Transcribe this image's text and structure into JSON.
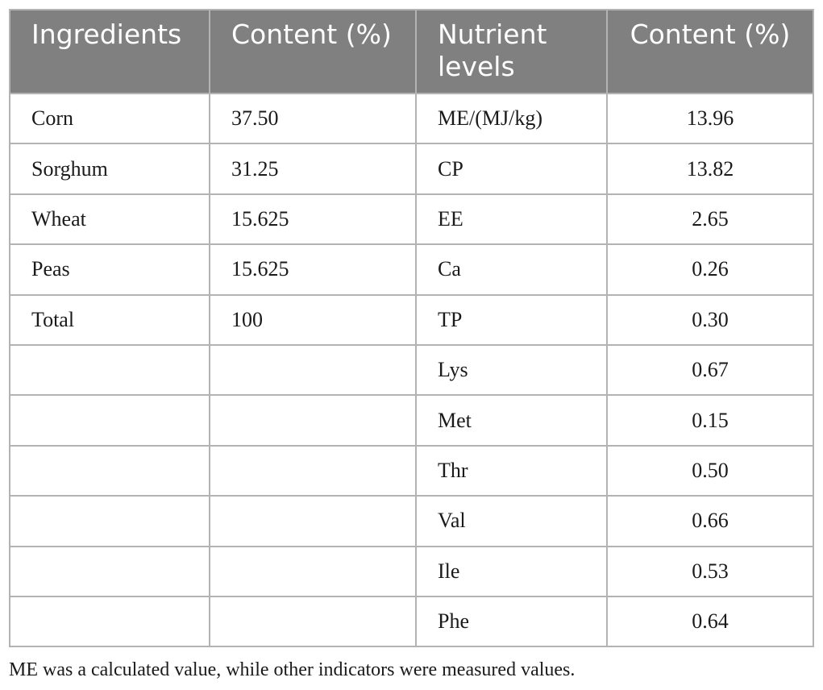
{
  "table": {
    "headers": [
      "Ingredients",
      "Content (%)",
      "Nutrient levels",
      "Content (%)"
    ],
    "rows": [
      [
        "Corn",
        "37.50",
        "ME/(MJ/kg)",
        "13.96"
      ],
      [
        "Sorghum",
        "31.25",
        "CP",
        "13.82"
      ],
      [
        "Wheat",
        "15.625",
        "EE",
        "2.65"
      ],
      [
        "Peas",
        "15.625",
        "Ca",
        "0.26"
      ],
      [
        "Total",
        "100",
        "TP",
        "0.30"
      ],
      [
        "",
        "",
        "Lys",
        "0.67"
      ],
      [
        "",
        "",
        "Met",
        "0.15"
      ],
      [
        "",
        "",
        "Thr",
        "0.50"
      ],
      [
        "",
        "",
        "Val",
        "0.66"
      ],
      [
        "",
        "",
        "Ile",
        "0.53"
      ],
      [
        "",
        "",
        "Phe",
        "0.64"
      ]
    ]
  },
  "footnote": "ME was a calculated value, while other indicators were measured values."
}
